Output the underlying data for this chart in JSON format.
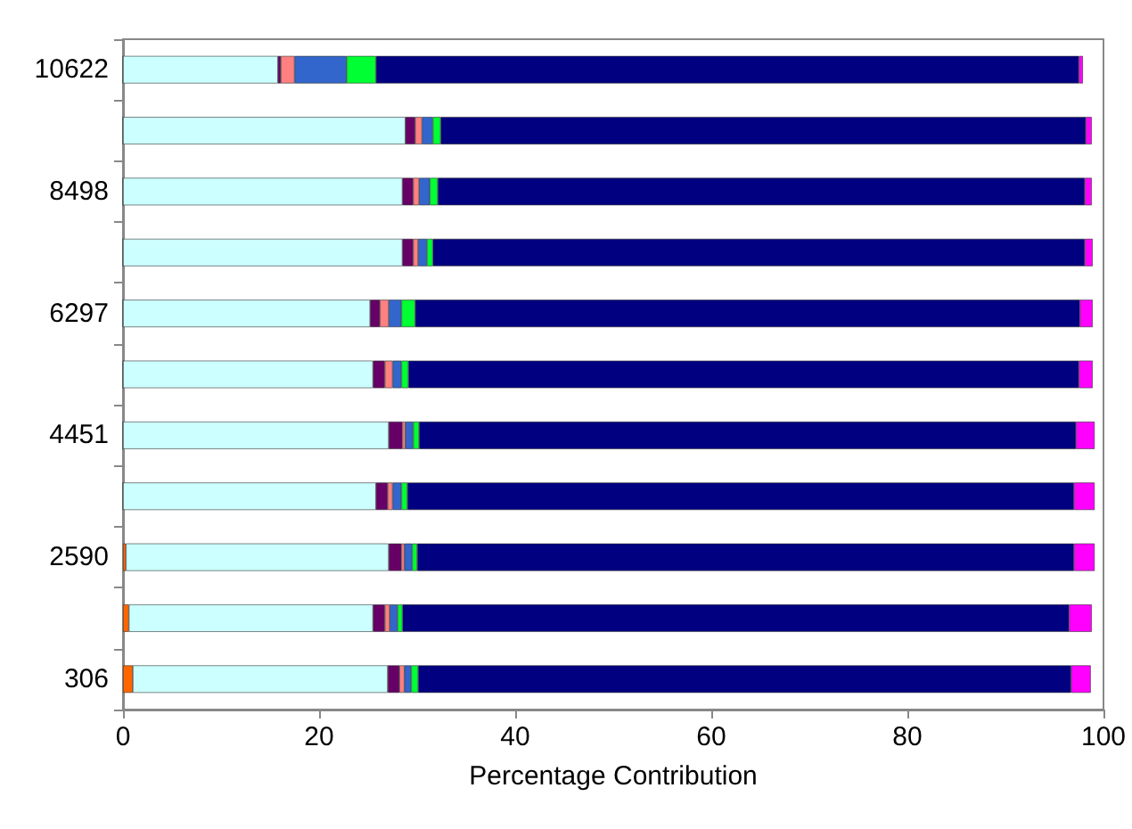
{
  "chart_data": {
    "type": "bar",
    "orientation": "horizontal",
    "stacked": true,
    "xlabel": "Percentage Contribution",
    "categories": [
      "10622",
      null,
      "8498",
      null,
      "6297",
      null,
      "4451",
      null,
      "2590",
      null,
      "306"
    ],
    "xlim": [
      0,
      100
    ],
    "xticks": [
      0,
      20,
      40,
      60,
      80,
      100
    ],
    "grid": false,
    "series": [
      {
        "color": "#ff6600",
        "values": [
          0,
          0,
          0,
          0,
          0,
          0,
          0,
          0,
          0.3,
          0.6,
          1.0
        ]
      },
      {
        "color": "#ccffff",
        "values": [
          15.8,
          28.8,
          28.5,
          28.5,
          25.2,
          25.5,
          27.1,
          25.8,
          26.8,
          24.9,
          26.0
        ]
      },
      {
        "color": "#660066",
        "values": [
          0.3,
          1.0,
          1.1,
          1.1,
          1.0,
          1.2,
          1.4,
          1.2,
          1.3,
          1.2,
          1.2
        ]
      },
      {
        "color": "#ff8080",
        "values": [
          1.4,
          0.7,
          0.6,
          0.5,
          0.9,
          0.8,
          0.3,
          0.5,
          0.3,
          0.5,
          0.5
        ]
      },
      {
        "color": "#3366cc",
        "values": [
          5.3,
          1.1,
          1.1,
          0.9,
          1.3,
          0.9,
          0.8,
          0.9,
          0.8,
          0.8,
          0.7
        ]
      },
      {
        "color": "#00ff33",
        "values": [
          3.0,
          0.8,
          0.8,
          0.6,
          1.4,
          0.7,
          0.6,
          0.6,
          0.5,
          0.5,
          0.7
        ]
      },
      {
        "color": "#000080",
        "values": [
          71.7,
          65.8,
          66.0,
          66.5,
          67.8,
          68.4,
          67.0,
          68.0,
          67.0,
          68.0,
          66.6
        ]
      },
      {
        "color": "#ff00ff",
        "values": [
          0.4,
          0.6,
          0.7,
          0.8,
          1.3,
          1.4,
          1.9,
          2.1,
          2.1,
          2.3,
          2.0
        ]
      }
    ]
  }
}
